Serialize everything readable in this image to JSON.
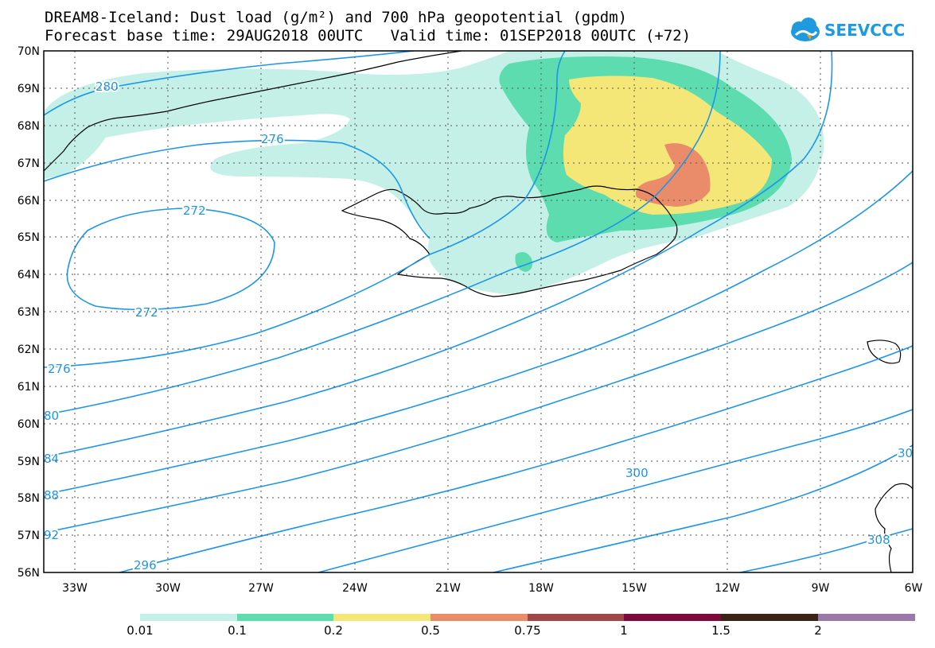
{
  "header": {
    "title_line1": "DREAM8-Iceland: Dust load (g/m²) and 700 hPa geopotential (gpdm)",
    "title_line2": "Forecast base time: 29AUG2018 00UTC   Valid time: 01SEP2018 00UTC (+72)"
  },
  "logo": {
    "text": "SEEVCCC"
  },
  "map": {
    "lat_labels": [
      "70N",
      "69N",
      "68N",
      "67N",
      "66N",
      "65N",
      "64N",
      "63N",
      "62N",
      "61N",
      "60N",
      "59N",
      "58N",
      "57N",
      "56N"
    ],
    "lon_labels": [
      "33W",
      "30W",
      "27W",
      "24W",
      "21W",
      "18W",
      "15W",
      "12W",
      "9W",
      "6W"
    ],
    "contour_labels": [
      "280",
      "276",
      "272",
      "272",
      "276",
      "80",
      "84",
      "88",
      "92",
      "296",
      "300",
      "30",
      "308"
    ]
  },
  "legend": {
    "thresholds": [
      "0.01",
      "0.1",
      "0.2",
      "0.5",
      "0.75",
      "1",
      "1.5",
      "2"
    ],
    "colors": [
      "#c4f0e8",
      "#5ddcb0",
      "#f5e678",
      "#ea8c6a",
      "#a04848",
      "#7c0a3a",
      "#3a2418",
      "#9a78a8"
    ]
  }
}
